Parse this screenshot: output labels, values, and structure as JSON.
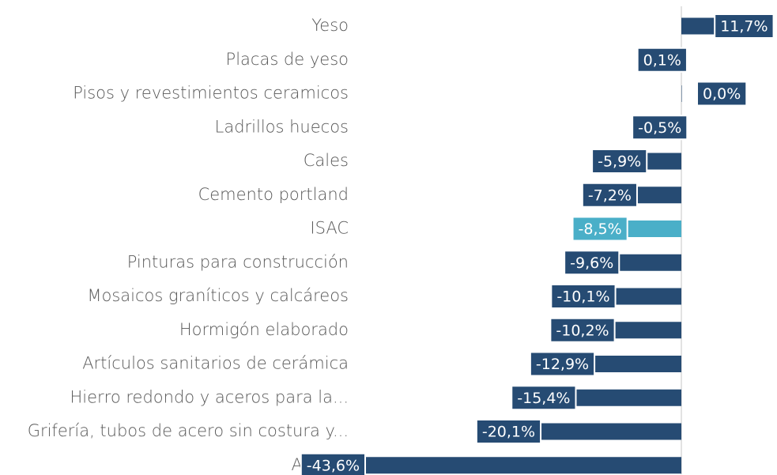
{
  "chart_data": {
    "type": "barh",
    "categories": [
      "Yeso",
      "Placas de yeso",
      "Pisos y revestimientos ceramicos",
      "Ladrillos huecos",
      "Cales",
      "Cemento portland",
      "ISAC",
      "Pinturas para construcción",
      "Mosaicos graníticos y calcáreos",
      "Hormigón elaborado",
      "Artículos sanitarios de cerámica",
      "Hierro redondo y aceros para la...",
      "Grifería, tubos de acero sin costura y...",
      "Asfalto"
    ],
    "values": [
      11.7,
      0.1,
      0.0,
      -0.5,
      -5.9,
      -7.2,
      -8.5,
      -9.6,
      -10.1,
      -10.2,
      -12.9,
      -15.4,
      -20.1,
      -43.6
    ],
    "value_labels": [
      "11,7%",
      "0,1%",
      "0,0%",
      "-0,5%",
      "-5,9%",
      "-7,2%",
      "-8,5%",
      "-9,6%",
      "-10,1%",
      "-10,2%",
      "-12,9%",
      "-15,4%",
      "-20,1%",
      "-43,6%"
    ],
    "colors": [
      "#264b73",
      "#264b73",
      "#264b73",
      "#264b73",
      "#264b73",
      "#264b73",
      "#4aafc8",
      "#264b73",
      "#264b73",
      "#264b73",
      "#264b73",
      "#264b73",
      "#264b73",
      "#264b73"
    ]
  }
}
